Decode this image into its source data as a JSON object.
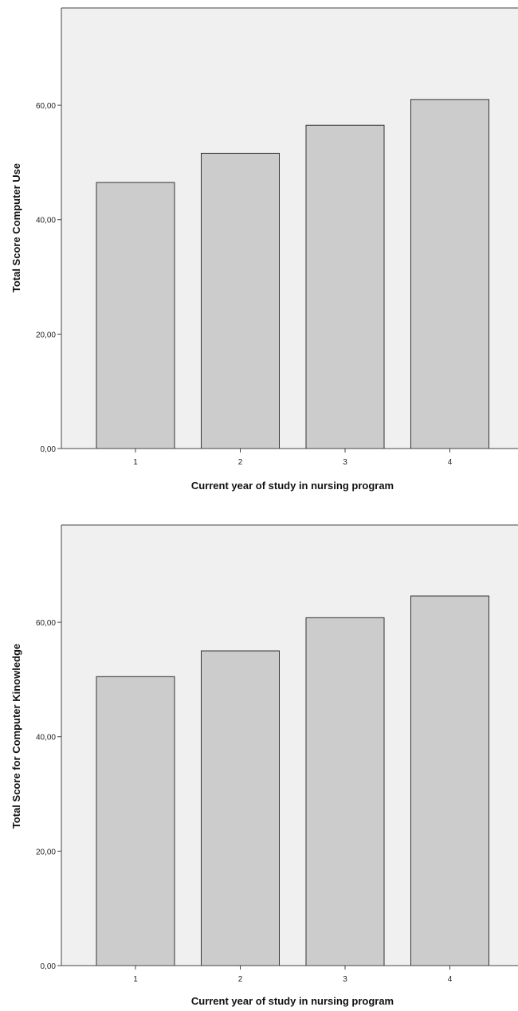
{
  "chart_data": [
    {
      "type": "bar",
      "categories": [
        "1",
        "2",
        "3",
        "4"
      ],
      "values": [
        46.5,
        51.6,
        56.5,
        61.0
      ],
      "title": "",
      "xlabel": "Current year of study in nursing program",
      "ylabel": "Total Score Computer Use",
      "ylim": [
        0,
        77
      ],
      "yticks": [
        "0,00",
        "20,00",
        "40,00",
        "60,00"
      ],
      "ytick_values": [
        0,
        20,
        40,
        60
      ],
      "grid": false,
      "legend": "none",
      "bar_color": "#cccccc",
      "plot_background": "#f0f0f0"
    },
    {
      "type": "bar",
      "categories": [
        "1",
        "2",
        "3",
        "4"
      ],
      "values": [
        50.5,
        55.0,
        60.8,
        64.6
      ],
      "title": "",
      "xlabel": "Current year of study in nursing program",
      "ylabel": "Total Score for Computer Kinowledge",
      "ylim": [
        0,
        77
      ],
      "yticks": [
        "0,00",
        "20,00",
        "40,00",
        "60,00"
      ],
      "ytick_values": [
        0,
        20,
        40,
        60
      ],
      "grid": false,
      "legend": "none",
      "bar_color": "#cccccc",
      "plot_background": "#f0f0f0"
    }
  ]
}
